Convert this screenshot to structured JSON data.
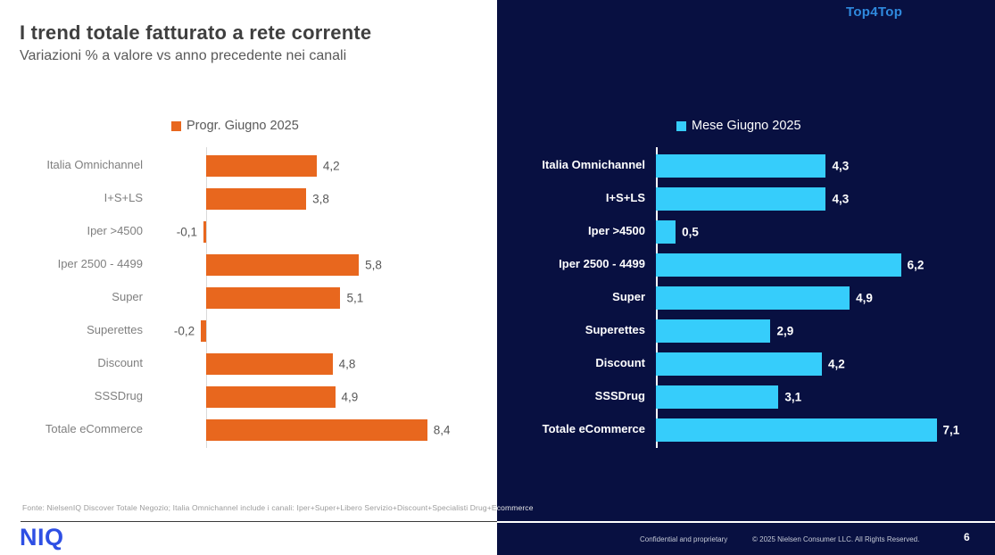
{
  "header": {
    "title": "I trend totale fatturato a rete corrente",
    "subtitle": "Variazioni % a valore vs anno precedente nei canali"
  },
  "brand": {
    "top_right_label": "Top4Top",
    "logo_text": "NIQ"
  },
  "colors": {
    "orange": "#e8671e",
    "cyan": "#36cdfb",
    "navy_background": "#081041",
    "top_right_blue": "#2f8ade",
    "logo_blue": "#2e4fe4"
  },
  "chart_data": [
    {
      "type": "bar",
      "orientation": "horizontal",
      "legend": "Progr. Giugno 2025",
      "series_color": "#e8671e",
      "categories": [
        "Italia Omnichannel",
        "I+S+LS",
        "Iper >4500",
        "Iper 2500 - 4499",
        "Super",
        "Superettes",
        "Discount",
        "SSSDrug",
        "Totale eCommerce"
      ],
      "values": [
        4.2,
        3.8,
        -0.1,
        5.8,
        5.1,
        -0.2,
        4.8,
        4.9,
        8.4
      ],
      "value_labels": [
        "4,2",
        "3,8",
        "-0,1",
        "5,8",
        "5,1",
        "-0,2",
        "4,8",
        "4,9",
        "8,4"
      ],
      "xlim": [
        -1,
        9
      ],
      "grid": false,
      "legend_position": "top"
    },
    {
      "type": "bar",
      "orientation": "horizontal",
      "legend": "Mese Giugno 2025",
      "series_color": "#36cdfb",
      "categories": [
        "Italia Omnichannel",
        "I+S+LS",
        "Iper >4500",
        "Iper 2500 - 4499",
        "Super",
        "Superettes",
        "Discount",
        "SSSDrug",
        "Totale eCommerce"
      ],
      "values": [
        4.3,
        4.3,
        0.5,
        6.2,
        4.9,
        2.9,
        4.2,
        3.1,
        7.1
      ],
      "value_labels": [
        "4,3",
        "4,3",
        "0,5",
        "6,2",
        "4,9",
        "2,9",
        "4,2",
        "3,1",
        "7,1"
      ],
      "xlim": [
        0,
        8
      ],
      "grid": false,
      "legend_position": "top"
    }
  ],
  "footer": {
    "fonte": "Fonte: NielsenIQ Discover Totale Negozio; Italia Omnichannel include i canali: Iper+Super+Libero Servizio+Discount+Specialisti Drug+Ecommerce",
    "confidential": "Confidential and proprietary",
    "copyright": "© 2025 Nielsen Consumer LLC. All Rights Reserved.",
    "page_number": "6"
  }
}
